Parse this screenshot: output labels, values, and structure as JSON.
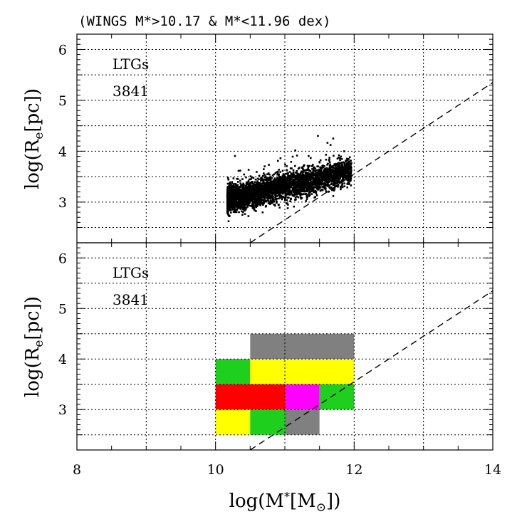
{
  "chart_data": [
    {
      "type": "scatter",
      "title": "(WINGS M*>10.17 & M*<11.96 dex)",
      "xlabel": "log(M*[M⊙])",
      "ylabel": "log(Re[pc])",
      "xlim": [
        8,
        14
      ],
      "ylim": [
        2.2,
        6.3
      ],
      "xticks": [
        "8",
        "10",
        "12",
        "14"
      ],
      "yticks": [
        "3",
        "4",
        "5",
        "6"
      ],
      "grid": true,
      "annotation": {
        "label": "LTGs",
        "count": "3841"
      },
      "point_cloud": {
        "n": 3841,
        "x_range": [
          10.17,
          11.96
        ],
        "y_center_at_x_min": 3.05,
        "y_center_at_x_max": 3.6,
        "y_scatter": 0.13
      },
      "reference_line": {
        "style": "dashed",
        "points": [
          [
            10.5,
            2.2
          ],
          [
            14,
            5.35
          ]
        ]
      }
    },
    {
      "type": "heatmap",
      "xlabel": "log(M*[M⊙])",
      "ylabel": "log(Re[pc])",
      "xlim": [
        8,
        14
      ],
      "ylim": [
        2.2,
        6.3
      ],
      "xticks": [
        "8",
        "10",
        "12",
        "14"
      ],
      "yticks": [
        "3",
        "4",
        "5",
        "6"
      ],
      "grid": true,
      "annotation": {
        "label": "LTGs",
        "count": "3841"
      },
      "cells": [
        {
          "x0": 10.5,
          "x1": 12.0,
          "y0": 4.0,
          "y1": 4.5,
          "color": "#808080"
        },
        {
          "x0": 10.0,
          "x1": 10.5,
          "y0": 3.5,
          "y1": 4.0,
          "color": "#1ecf1e"
        },
        {
          "x0": 10.5,
          "x1": 12.0,
          "y0": 3.5,
          "y1": 4.0,
          "color": "#ffff00"
        },
        {
          "x0": 10.0,
          "x1": 11.0,
          "y0": 3.0,
          "y1": 3.5,
          "color": "#ff0000"
        },
        {
          "x0": 11.0,
          "x1": 11.5,
          "y0": 3.0,
          "y1": 3.5,
          "color": "#ff00ff"
        },
        {
          "x0": 11.5,
          "x1": 12.0,
          "y0": 3.0,
          "y1": 3.5,
          "color": "#1ecf1e"
        },
        {
          "x0": 10.0,
          "x1": 10.5,
          "y0": 2.5,
          "y1": 3.0,
          "color": "#ffff00"
        },
        {
          "x0": 10.5,
          "x1": 11.0,
          "y0": 2.5,
          "y1": 3.0,
          "color": "#1ecf1e"
        },
        {
          "x0": 11.0,
          "x1": 11.5,
          "y0": 2.5,
          "y1": 3.0,
          "color": "#808080"
        }
      ],
      "reference_line": {
        "style": "dashed",
        "points": [
          [
            10.5,
            2.2
          ],
          [
            14,
            5.35
          ]
        ]
      }
    }
  ]
}
